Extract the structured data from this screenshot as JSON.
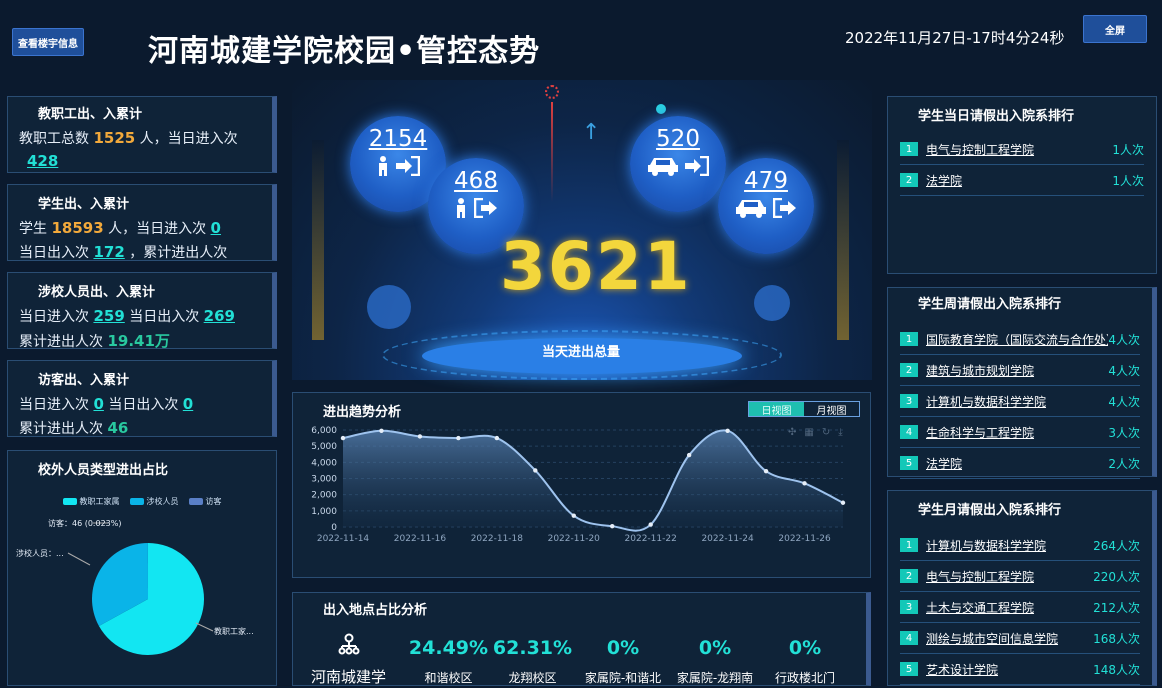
{
  "header": {
    "building_info_button": "查看楼宇信息",
    "title": "河南城建学院校园•管控态势",
    "datetime": "2022年11月27日-17时4分24秒",
    "fullscreen_button": "全屏"
  },
  "staff": {
    "title": "教职工出、入累计",
    "total_label": "教职工总数",
    "total": "1525",
    "mid_label": "人，当日进入次",
    "today_in": "428"
  },
  "students": {
    "title": "学生出、入累计",
    "label_a": "学生",
    "count": "18593",
    "label_b": "人，当日进入次",
    "today_in": "0",
    "out_label": "当日出入次",
    "today_out": "172",
    "cum_label": "，累计进出人次"
  },
  "school_related": {
    "title": "涉校人员出、入累计",
    "in_label": "当日进入次",
    "today_in": "259",
    "out_label": "当日出入次",
    "today_out": "269",
    "cum_label": "累计进出人次",
    "cumulative": "19.41万"
  },
  "visitors": {
    "title": "访客出、入累计",
    "in_label": "当日进入次",
    "today_in": "0",
    "out_label": "当日出入次",
    "today_out": "0",
    "cum_label": "累计进出人次",
    "cumulative": "46"
  },
  "pie": {
    "title": "校外人员类型进出占比",
    "legend": [
      {
        "name": "教职工家属",
        "color": "#12e6f2"
      },
      {
        "name": "涉校人员",
        "color": "#0ab4e8"
      },
      {
        "name": "访客",
        "color": "#5a7fc6"
      }
    ],
    "label_visitor": "访客：46 (0.023%)",
    "label_related": "涉校人员：...",
    "label_family": "教职工家...",
    "fractions": [
      0.67,
      0.33,
      0.0002
    ]
  },
  "center": {
    "person_in": "2154",
    "person_out": "468",
    "car_in": "520",
    "car_out": "479",
    "total": "3621",
    "total_label": "当天进出总量"
  },
  "trend": {
    "title": "进出趋势分析",
    "tab_day": "日视图",
    "tab_month": "月视图"
  },
  "chart_data": {
    "type": "area",
    "title": "进出趋势分析",
    "x": [
      "2022-11-14",
      "2022-11-15",
      "2022-11-16",
      "2022-11-17",
      "2022-11-18",
      "2022-11-19",
      "2022-11-20",
      "2022-11-21",
      "2022-11-22",
      "2022-11-23",
      "2022-11-24",
      "2022-11-25",
      "2022-11-26",
      "2022-11-27"
    ],
    "values": [
      5500,
      5950,
      5600,
      5500,
      5500,
      3500,
      700,
      50,
      150,
      4450,
      5950,
      3450,
      2700,
      1500
    ],
    "x_tick_labels": [
      "2022-11-14",
      "2022-11-16",
      "2022-11-18",
      "2022-11-20",
      "2022-11-22",
      "2022-11-24",
      "2022-11-26"
    ],
    "y_tick_labels": [
      "0",
      "1,000",
      "2,000",
      "3,000",
      "4,000",
      "5,000",
      "6,000"
    ],
    "ylim": [
      0,
      6000
    ],
    "grid": true,
    "line_color": "#9ec3ee"
  },
  "location": {
    "title": "出入地点占比分析",
    "campus": "河南城建学",
    "items": [
      {
        "pct": "24.49%",
        "name": "和谐校区"
      },
      {
        "pct": "62.31%",
        "name": "龙翔校区"
      },
      {
        "pct": "0%",
        "name": "家属院-和谐北"
      },
      {
        "pct": "0%",
        "name": "家属院-龙翔南"
      },
      {
        "pct": "0%",
        "name": "行政楼北门"
      }
    ]
  },
  "leave_day": {
    "title": "学生当日请假出入院系排行",
    "items": [
      {
        "rank": "1",
        "name": "电气与控制工程学院",
        "count": "1人次"
      },
      {
        "rank": "2",
        "name": "法学院",
        "count": "1人次"
      }
    ]
  },
  "leave_week": {
    "title": "学生周请假出入院系排行",
    "items": [
      {
        "rank": "1",
        "name": "国际教育学院（国际交流与合作处）",
        "count": "4人次"
      },
      {
        "rank": "2",
        "name": "建筑与城市规划学院",
        "count": "4人次"
      },
      {
        "rank": "3",
        "name": "计算机与数据科学学院",
        "count": "4人次"
      },
      {
        "rank": "4",
        "name": "生命科学与工程学院",
        "count": "3人次"
      },
      {
        "rank": "5",
        "name": "法学院",
        "count": "2人次"
      }
    ]
  },
  "leave_month": {
    "title": "学生月请假出入院系排行",
    "items": [
      {
        "rank": "1",
        "name": "计算机与数据科学学院",
        "count": "264人次"
      },
      {
        "rank": "2",
        "name": "电气与控制工程学院",
        "count": "220人次"
      },
      {
        "rank": "3",
        "name": "土木与交通工程学院",
        "count": "212人次"
      },
      {
        "rank": "4",
        "name": "测绘与城市空间信息学院",
        "count": "168人次"
      },
      {
        "rank": "5",
        "name": "艺术设计学院",
        "count": "148人次"
      }
    ]
  }
}
